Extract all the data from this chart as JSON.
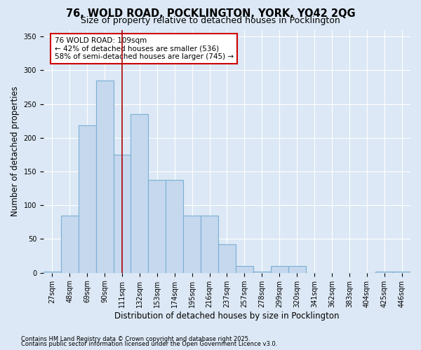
{
  "title1": "76, WOLD ROAD, POCKLINGTON, YORK, YO42 2QG",
  "title2": "Size of property relative to detached houses in Pocklington",
  "xlabel": "Distribution of detached houses by size in Pocklington",
  "ylabel": "Number of detached properties",
  "bins": [
    "27sqm",
    "48sqm",
    "69sqm",
    "90sqm",
    "111sqm",
    "132sqm",
    "153sqm",
    "174sqm",
    "195sqm",
    "216sqm",
    "237sqm",
    "257sqm",
    "278sqm",
    "299sqm",
    "320sqm",
    "341sqm",
    "362sqm",
    "383sqm",
    "404sqm",
    "425sqm",
    "446sqm"
  ],
  "values": [
    2,
    85,
    218,
    285,
    175,
    235,
    138,
    138,
    85,
    85,
    42,
    10,
    2,
    10,
    10,
    0,
    0,
    0,
    0,
    2,
    2
  ],
  "bar_color": "#c5d8ee",
  "bar_edge_color": "#7bafd4",
  "bar_edge_width": 0.8,
  "vline_x_index": 4,
  "vline_color": "#aa0000",
  "annotation_text": "76 WOLD ROAD: 109sqm\n← 42% of detached houses are smaller (536)\n58% of semi-detached houses are larger (745) →",
  "annotation_box_color": "#ffffff",
  "annotation_box_edge": "#cc0000",
  "annotation_fontsize": 7.5,
  "footnote1": "Contains HM Land Registry data © Crown copyright and database right 2025.",
  "footnote2": "Contains public sector information licensed under the Open Government Licence v3.0.",
  "background_color": "#dce8f5",
  "plot_bg_color": "#dce8f5",
  "yticks": [
    0,
    50,
    100,
    150,
    200,
    250,
    300,
    350
  ],
  "ylim": [
    0,
    360
  ],
  "title_fontsize": 10.5,
  "subtitle_fontsize": 9,
  "axis_label_fontsize": 8.5,
  "tick_fontsize": 7,
  "footnote_fontsize": 6
}
